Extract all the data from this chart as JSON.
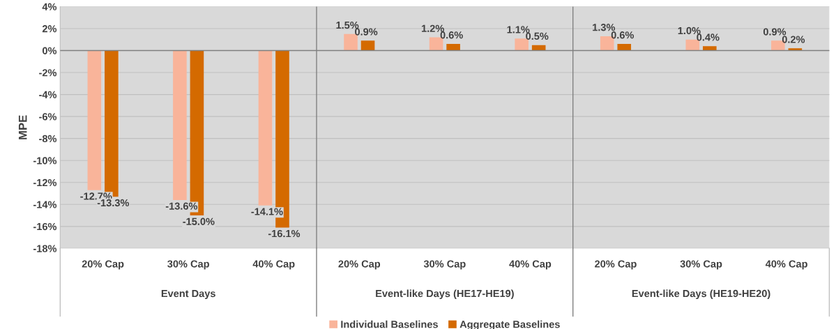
{
  "chart_data": {
    "type": "bar",
    "ylabel": "MPE",
    "categories": [
      "20% Cap",
      "30% Cap",
      "40% Cap",
      "20% Cap",
      "30% Cap",
      "40% Cap",
      "20% Cap",
      "30% Cap",
      "40% Cap"
    ],
    "series": [
      {
        "name": "Individual Baselines",
        "color": "#f9b49a",
        "values": [
          -12.7,
          -13.6,
          -14.1,
          1.5,
          1.2,
          1.1,
          1.3,
          1.0,
          0.9
        ],
        "value_labels": [
          "-12.7%",
          "-13.6%",
          "-14.1%",
          "1.5%",
          "1.2%",
          "1.1%",
          "1.3%",
          "1.0%",
          "0.9%"
        ]
      },
      {
        "name": "Aggregate Baselines",
        "color": "#d46a00",
        "values": [
          -13.3,
          -15.0,
          -16.1,
          0.9,
          0.6,
          0.5,
          0.6,
          0.4,
          0.2
        ],
        "value_labels": [
          "-13.3%",
          "-15.0%",
          "-16.1%",
          "0.9%",
          "0.6%",
          "0.5%",
          "0.6%",
          "0.4%",
          "0.2%"
        ]
      }
    ],
    "annotations": [
      "Event Days",
      "Event-like Days (HE17-HE19)",
      "Event-like Days (HE19-HE20)"
    ],
    "ylim": [
      -18,
      4
    ],
    "yticks": [
      {
        "value": -18,
        "label": "-18%"
      },
      {
        "value": -16,
        "label": "-16%"
      },
      {
        "value": -14,
        "label": "-14%"
      },
      {
        "value": -12,
        "label": "-12%"
      },
      {
        "value": -10,
        "label": "-10%"
      },
      {
        "value": -8,
        "label": "-8%"
      },
      {
        "value": -6,
        "label": "-6%"
      },
      {
        "value": -4,
        "label": "-4%"
      },
      {
        "value": -2,
        "label": "-2%"
      },
      {
        "value": 0,
        "label": "0%"
      },
      {
        "value": 2,
        "label": "2%"
      },
      {
        "value": 4,
        "label": "4%"
      }
    ],
    "grid": "y",
    "legend": "bottom"
  }
}
